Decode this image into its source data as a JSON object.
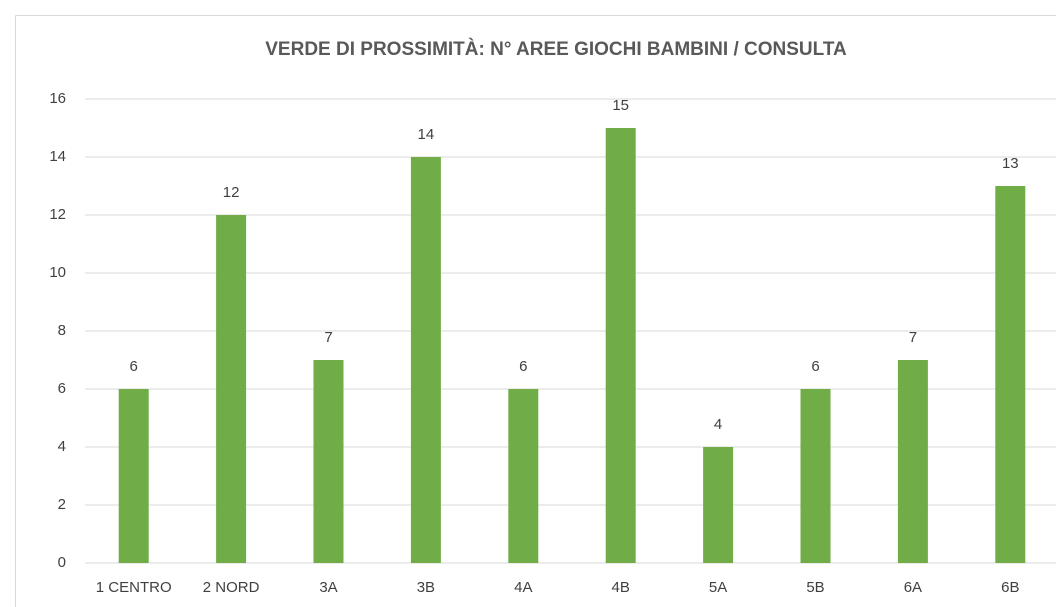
{
  "chart_data": {
    "type": "bar",
    "title": "VERDE DI PROSSIMITÀ: N° AREE GIOCHI BAMBINI / CONSULTA",
    "categories": [
      "1 CENTRO",
      "2 NORD",
      "3A",
      "3B",
      "4A",
      "4B",
      "5A",
      "5B",
      "6A",
      "6B"
    ],
    "values": [
      6,
      12,
      7,
      14,
      6,
      15,
      4,
      6,
      7,
      13
    ],
    "color": "#70ad47",
    "ylim": [
      0,
      16
    ],
    "yticks": [
      0,
      2,
      4,
      6,
      8,
      10,
      12,
      14,
      16
    ],
    "grid": true
  }
}
